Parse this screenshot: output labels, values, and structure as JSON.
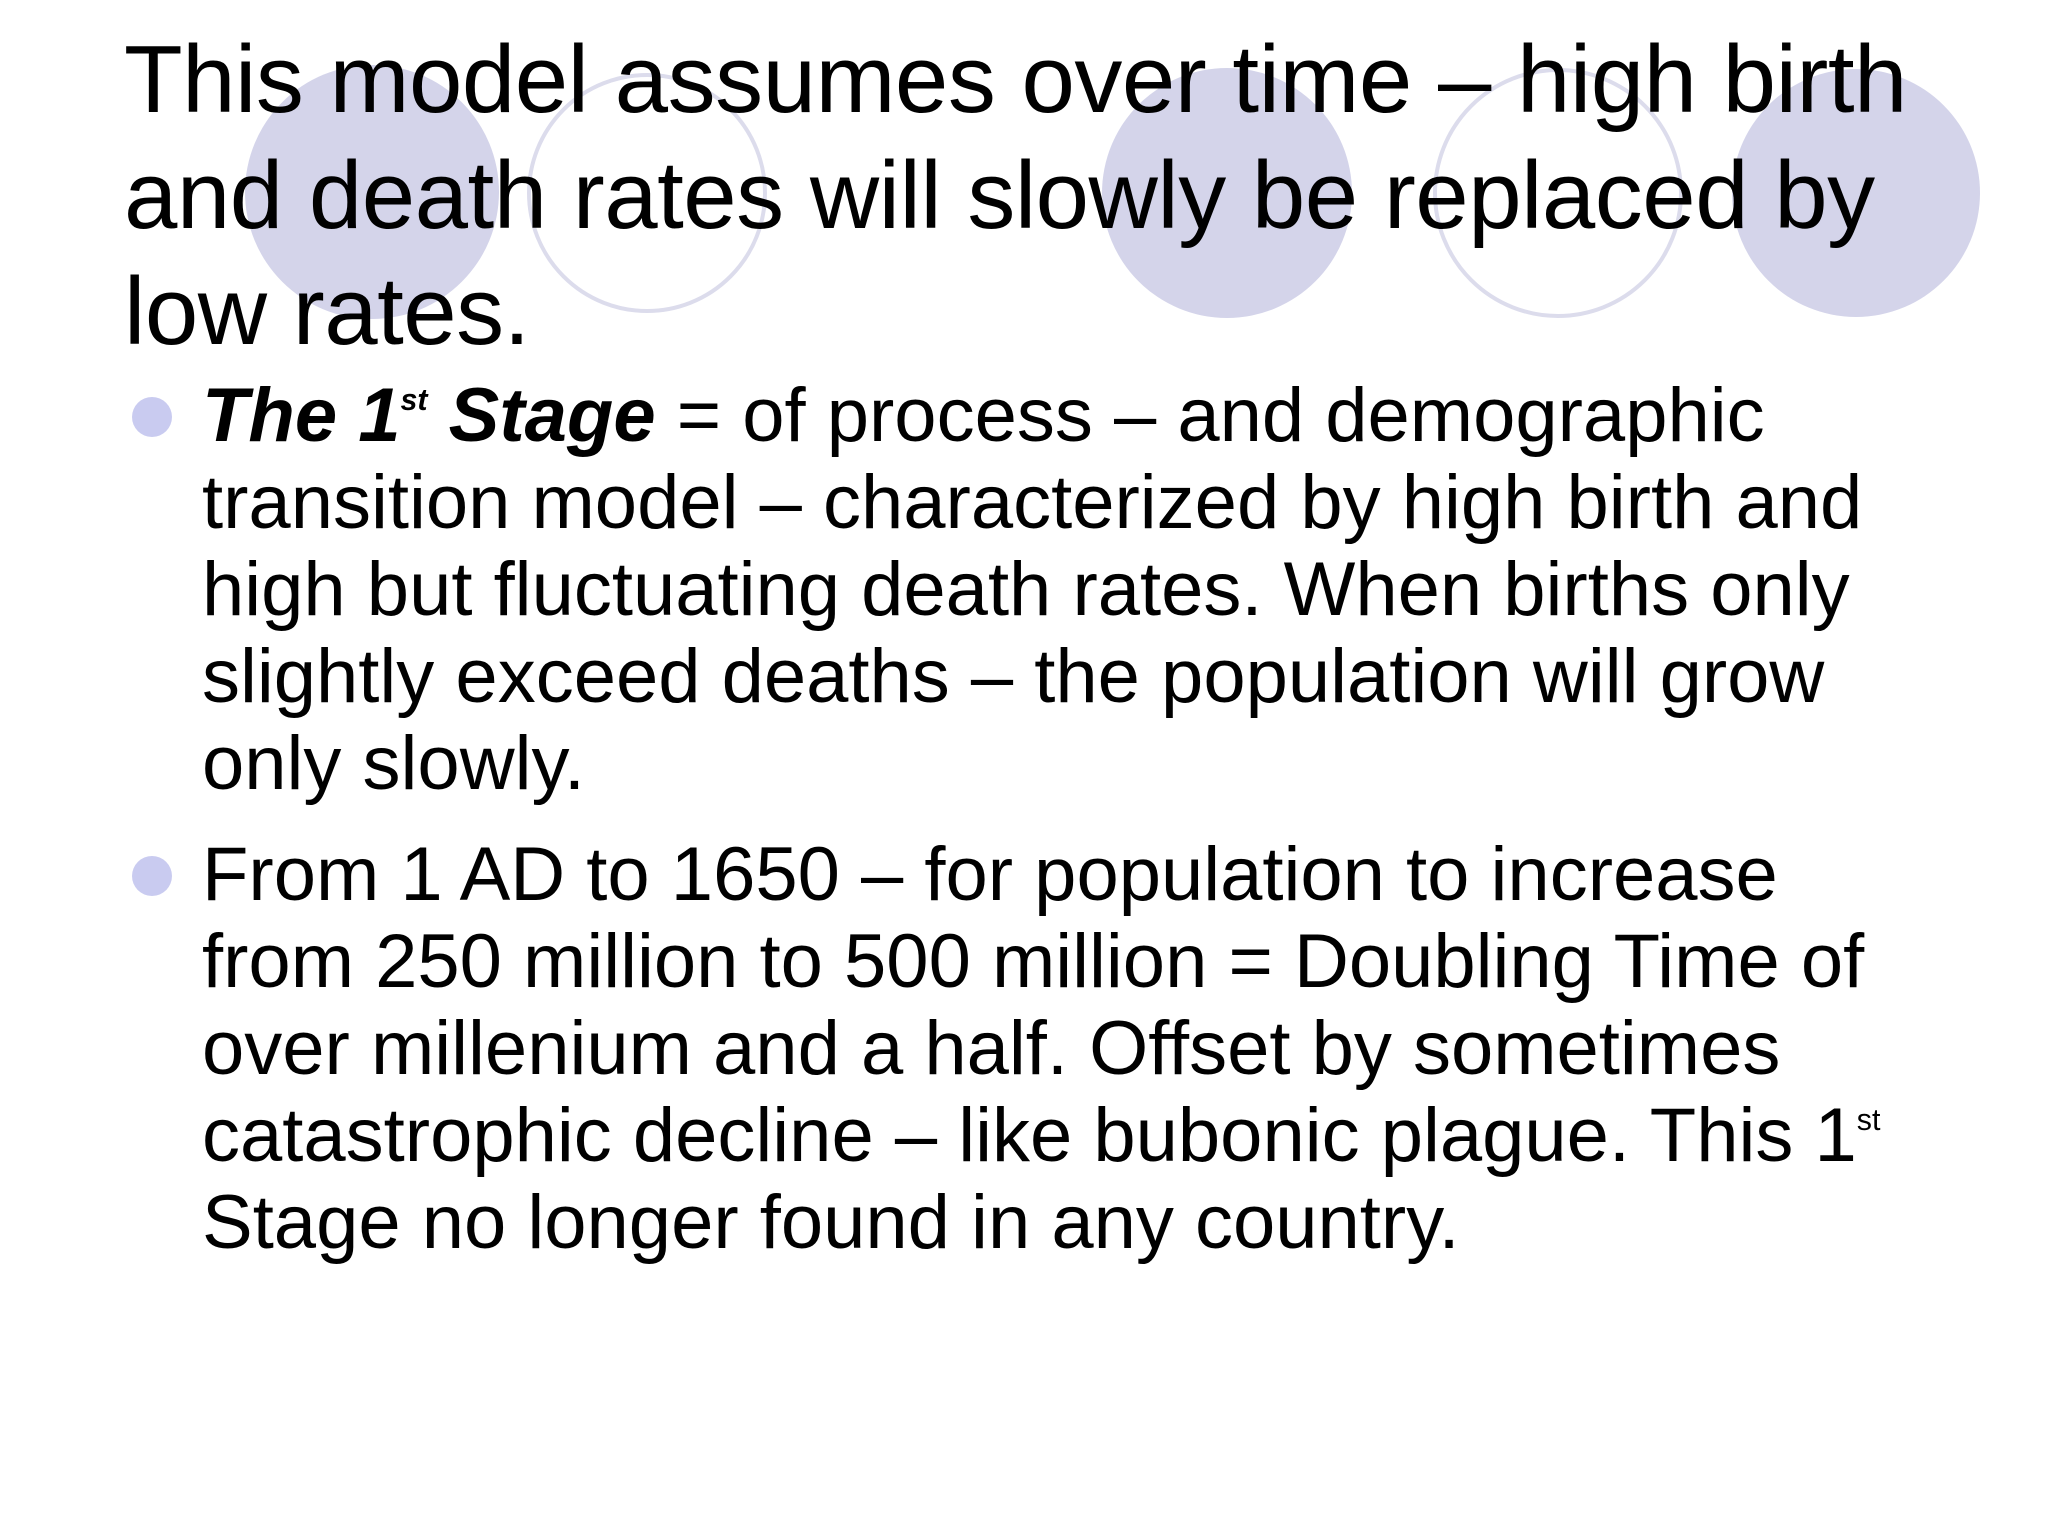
{
  "slide": {
    "title": "This model assumes over time – high birth and death rates will slowly be replaced by low rates.",
    "bullets": [
      {
        "term_part1": "The 1",
        "term_sup": "st",
        "term_part2": " Stage",
        "text": " = of process – and demographic transition model – characterized by high birth and high but fluctuating death rates.  When births only slightly exceed deaths – the population will grow only slowly."
      },
      {
        "text_part1": "From 1 AD to 1650 – for population to increase from 250 million to 500 million = Doubling Time of over millenium and a half.  Offset by sometimes catastrophic decline – like bubonic plague.  This 1",
        "text_sup": "st",
        "text_part2": " Stage no longer found in any country."
      }
    ]
  },
  "colors": {
    "circle_fill": "#d4d4ea",
    "circle_outline": "#dcdcec",
    "bullet": "#c9cbf0",
    "text": "#000000"
  }
}
